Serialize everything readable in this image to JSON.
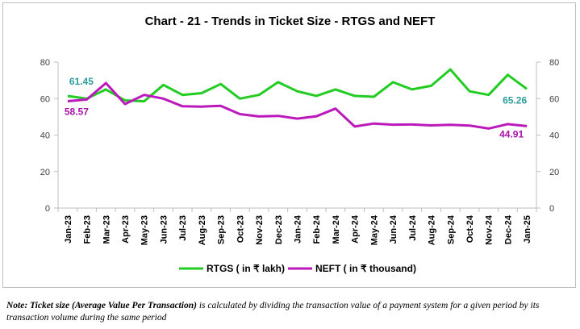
{
  "chart_data": {
    "type": "line",
    "title": "Chart - 21 - Trends in Ticket Size - RTGS and NEFT",
    "categories": [
      "Jan-23",
      "Feb-23",
      "Mar-23",
      "Apr-23",
      "May-23",
      "Jun-23",
      "Jul-23",
      "Aug-23",
      "Sep-23",
      "Oct-23",
      "Nov-23",
      "Dec-23",
      "Jan-24",
      "Feb-24",
      "Mar-24",
      "Apr-24",
      "May-24",
      "Jun-24",
      "Jul-24",
      "Aug-24",
      "Sep-24",
      "Oct-24",
      "Nov-24",
      "Dec-24",
      "Jan-25"
    ],
    "series": [
      {
        "name": "RTGS ( in ₹ lakh)",
        "axis": "left",
        "color": "#22cc22",
        "values": [
          61.45,
          60.0,
          65.0,
          59.0,
          58.5,
          67.5,
          62.0,
          63.0,
          68.0,
          60.0,
          62.0,
          69.0,
          64.0,
          61.5,
          65.0,
          61.5,
          61.0,
          69.0,
          65.0,
          67.0,
          76.0,
          64.0,
          62.0,
          73.0,
          65.26
        ]
      },
      {
        "name": "NEFT ( in ₹ thousand)",
        "axis": "right",
        "color": "#bb19bb",
        "values": [
          58.57,
          59.5,
          68.5,
          57.0,
          62.0,
          60.0,
          55.8,
          55.6,
          56.0,
          51.5,
          50.2,
          50.5,
          49.0,
          50.3,
          54.5,
          44.7,
          46.3,
          45.7,
          45.8,
          45.3,
          45.6,
          45.2,
          43.6,
          46.0,
          44.91
        ]
      }
    ],
    "ylim": [
      0,
      80
    ],
    "y_ticks": [
      "0",
      "20",
      "40",
      "60",
      "80"
    ],
    "y2lim": [
      0,
      80
    ],
    "y2_ticks": [
      "0",
      "20",
      "40",
      "60",
      "80"
    ],
    "data_labels": [
      {
        "text": "61.45",
        "series": 0,
        "index": 0,
        "color": "#2e9c9c"
      },
      {
        "text": "58.57",
        "series": 1,
        "index": 0,
        "color": "#aa11aa"
      },
      {
        "text": "65.26",
        "series": 0,
        "index": 24,
        "color": "#2e9c9c"
      },
      {
        "text": "44.91",
        "series": 1,
        "index": 24,
        "color": "#aa11aa"
      }
    ],
    "grid": false,
    "legend": "bottom"
  },
  "note": {
    "lead": "Note: Ticket size (Average Value Per Transaction)",
    "body": " is calculated by dividing the transaction value of a payment system for a given period by its transaction volume during the same period"
  }
}
